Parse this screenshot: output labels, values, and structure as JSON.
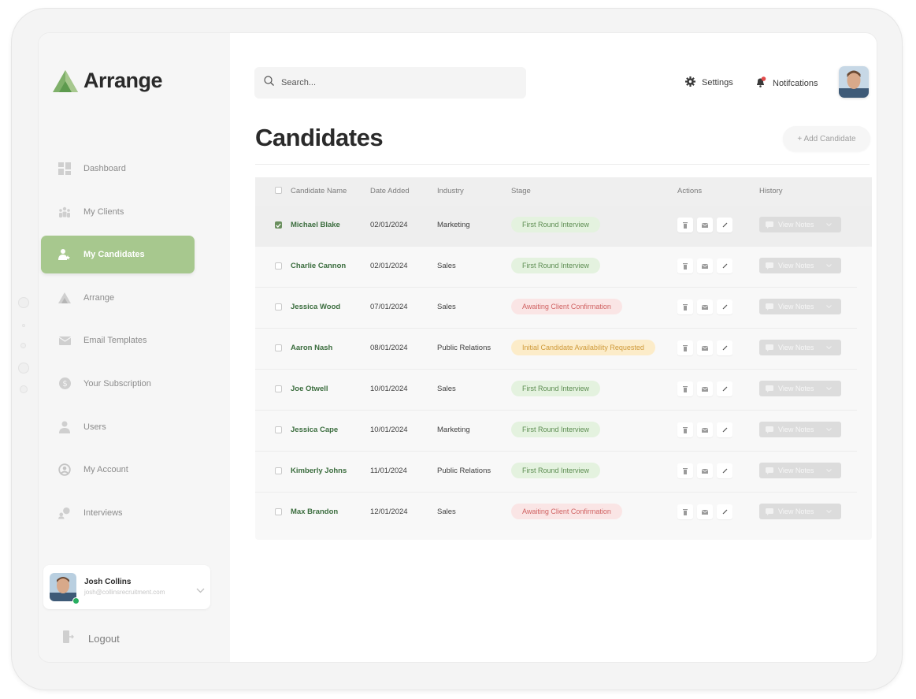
{
  "app": {
    "name": "Arrange",
    "brand_color": "#a7c88e",
    "accent_text_color": "#3b6d3e"
  },
  "sidebar": {
    "items": [
      {
        "label": "Dashboard",
        "icon": "dashboard-icon",
        "active": false
      },
      {
        "label": "My Clients",
        "icon": "clients-icon",
        "active": false
      },
      {
        "label": "My Candidates",
        "icon": "candidate-icon",
        "active": true
      },
      {
        "label": "Arrange",
        "icon": "arrange-logo-icon",
        "active": false
      },
      {
        "label": "Email Templates",
        "icon": "mail-icon",
        "active": false
      },
      {
        "label": "Your Subscription",
        "icon": "dollar-icon",
        "active": false
      },
      {
        "label": "Users",
        "icon": "user-icon",
        "active": false
      },
      {
        "label": "My Account",
        "icon": "account-icon",
        "active": false
      },
      {
        "label": "Interviews",
        "icon": "interviews-icon",
        "active": false
      }
    ],
    "user": {
      "name": "Josh Collins",
      "email": "josh@collinsrecruitment.com",
      "status": "online"
    },
    "logout_label": "Logout"
  },
  "header": {
    "search_placeholder": "Search...",
    "settings_label": "Settings",
    "notifications_label": "Notifcations"
  },
  "main": {
    "title": "Candidates",
    "add_button_label": "+ Add Candidate",
    "table": {
      "columns": [
        "Candidate Name",
        "Date Added",
        "Industry",
        "Stage",
        "Actions",
        "History"
      ],
      "view_notes_label": "View Notes",
      "rows": [
        {
          "name": "Michael Blake",
          "date": "02/01/2024",
          "industry": "Marketing",
          "stage": "First Round Interview",
          "stage_type": "green",
          "checked": true
        },
        {
          "name": "Charlie Cannon",
          "date": "02/01/2024",
          "industry": "Sales",
          "stage": "First Round Interview",
          "stage_type": "green",
          "checked": false
        },
        {
          "name": "Jessica Wood",
          "date": "07/01/2024",
          "industry": "Sales",
          "stage": "Awaiting Client Confirmation",
          "stage_type": "red",
          "checked": false
        },
        {
          "name": "Aaron Nash",
          "date": "08/01/2024",
          "industry": "Public Relations",
          "stage": "Initial Candidate Availability Requested",
          "stage_type": "amber",
          "checked": false
        },
        {
          "name": "Joe Otwell",
          "date": "10/01/2024",
          "industry": "Sales",
          "stage": "First Round Interview",
          "stage_type": "green",
          "checked": false
        },
        {
          "name": "Jessica Cape",
          "date": "10/01/2024",
          "industry": "Marketing",
          "stage": "First Round Interview",
          "stage_type": "green",
          "checked": false
        },
        {
          "name": "Kimberly Johns",
          "date": "11/01/2024",
          "industry": "Public Relations",
          "stage": "First Round Interview",
          "stage_type": "green",
          "checked": false
        },
        {
          "name": "Max Brandon",
          "date": "12/01/2024",
          "industry": "Sales",
          "stage": "Awaiting Client Confirmation",
          "stage_type": "red",
          "checked": false
        }
      ]
    }
  }
}
